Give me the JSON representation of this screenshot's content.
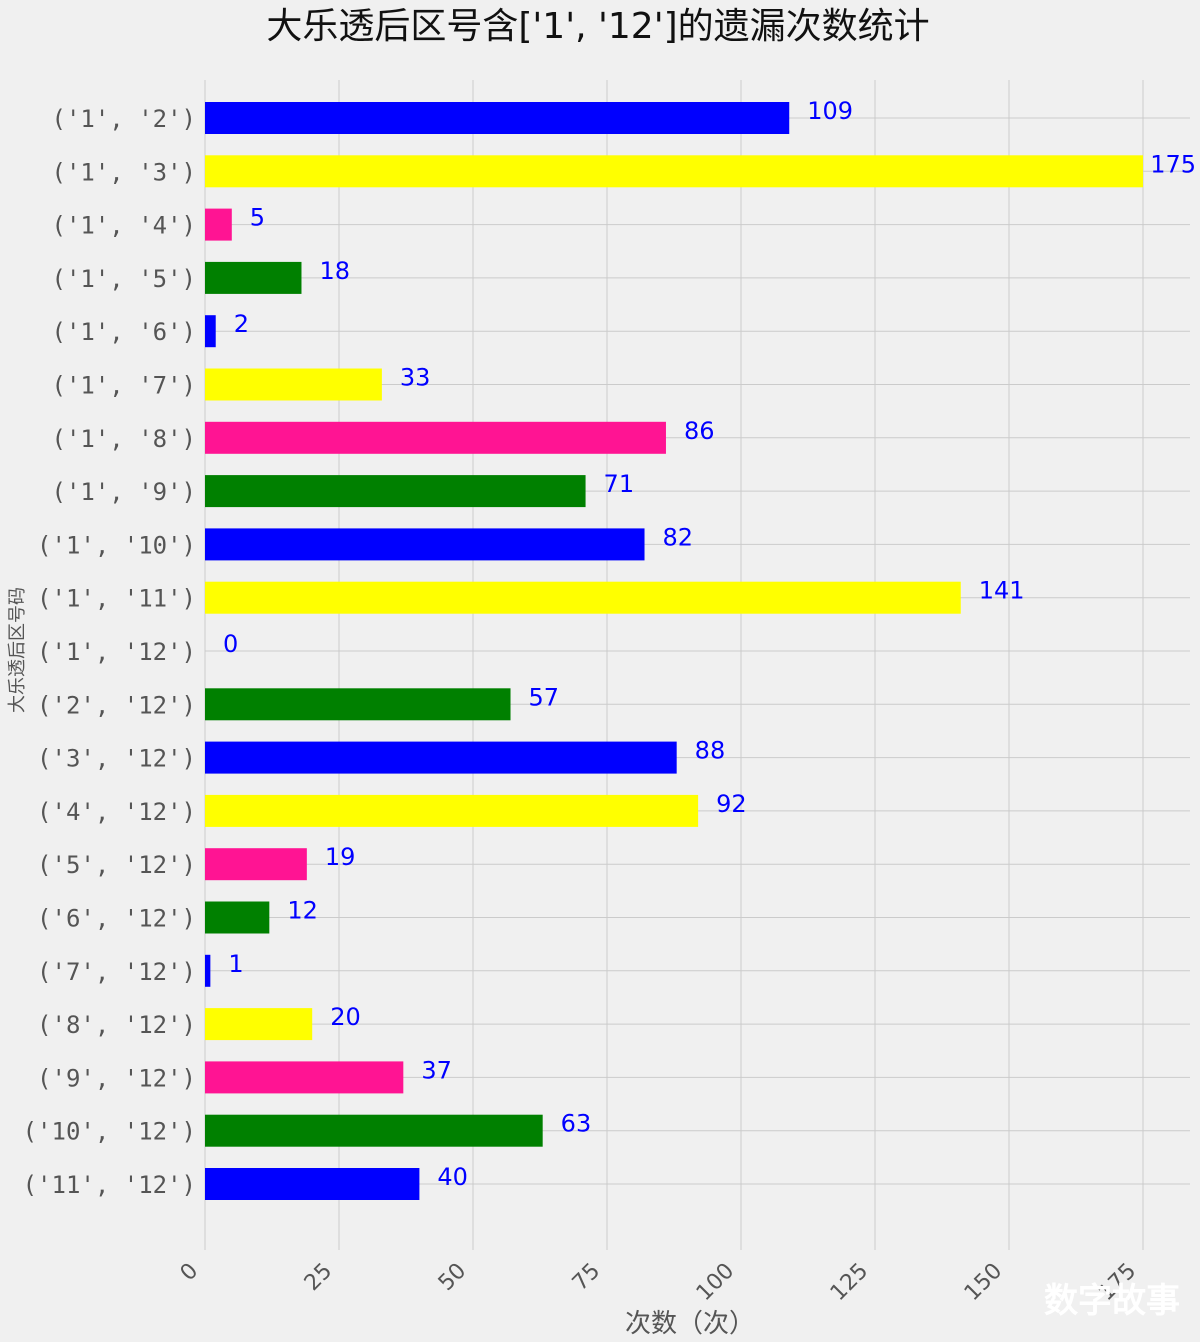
{
  "chart_data": {
    "type": "bar",
    "orientation": "horizontal",
    "title": "大乐透后区号含['1', '12']的遗漏次数统计",
    "xlabel": "次数（次）",
    "ylabel": "大乐透后区号码",
    "xlim": [
      0,
      184
    ],
    "xticks": [
      0,
      25,
      50,
      75,
      100,
      125,
      150,
      175
    ],
    "grid": true,
    "value_label_color": "#0000ff",
    "categories": [
      "('1', '2')",
      "('1', '3')",
      "('1', '4')",
      "('1', '5')",
      "('1', '6')",
      "('1', '7')",
      "('1', '8')",
      "('1', '9')",
      "('1', '10')",
      "('1', '11')",
      "('1', '12')",
      "('2', '12')",
      "('3', '12')",
      "('4', '12')",
      "('5', '12')",
      "('6', '12')",
      "('7', '12')",
      "('8', '12')",
      "('9', '12')",
      "('10', '12')",
      "('11', '12')"
    ],
    "values": [
      109,
      175,
      5,
      18,
      2,
      33,
      86,
      71,
      82,
      141,
      0,
      57,
      88,
      92,
      19,
      12,
      1,
      20,
      37,
      63,
      40
    ],
    "colors": [
      "#0000ff",
      "#ffff00",
      "#ff1493",
      "#008000"
    ]
  },
  "watermark": "数字故事"
}
